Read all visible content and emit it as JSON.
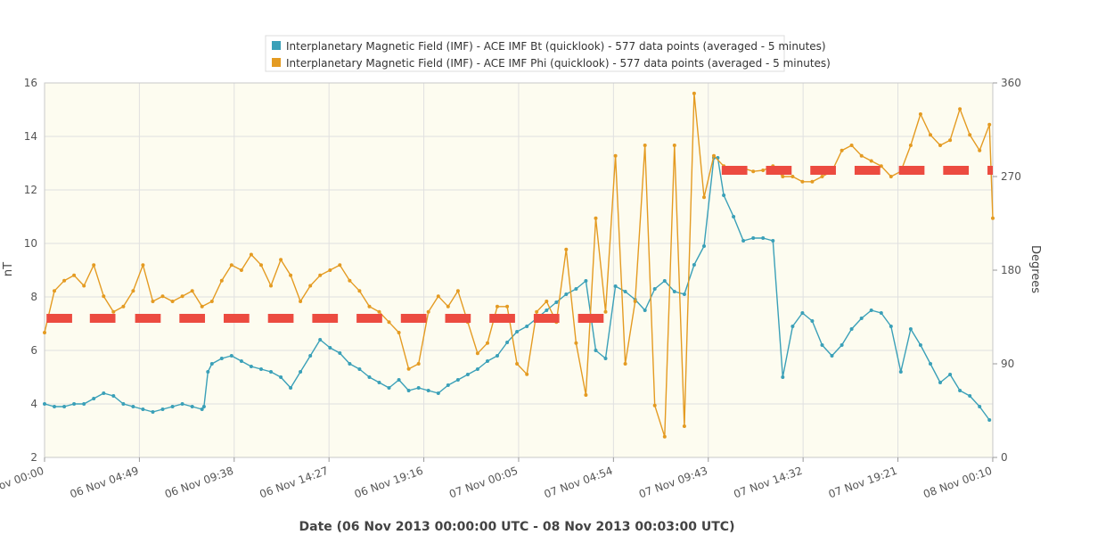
{
  "chart_data": {
    "type": "line",
    "xlabel": "Date (06 Nov 2013 00:00:00 UTC - 08 Nov 2013 00:03:00 UTC)",
    "ylabel_left": "nT",
    "ylabel_right": "Degrees",
    "ylim_left": [
      2,
      16
    ],
    "ylim_right": [
      0,
      360
    ],
    "yticks_left": [
      "2",
      "4",
      "6",
      "8",
      "10",
      "12",
      "14",
      "16"
    ],
    "yticks_right": [
      "0",
      "90",
      "180",
      "270",
      "360"
    ],
    "xlim_hours": [
      0,
      48.17
    ],
    "xticks": [
      "06 Nov 00:00",
      "06 Nov 04:49",
      "06 Nov 09:38",
      "06 Nov 14:27",
      "06 Nov 19:16",
      "07 Nov 00:05",
      "07 Nov 04:54",
      "07 Nov 09:43",
      "07 Nov 14:32",
      "07 Nov 19:21",
      "08 Nov 00:10"
    ],
    "xtick_hours": [
      0,
      4.817,
      9.633,
      14.45,
      19.267,
      24.083,
      28.9,
      33.717,
      38.533,
      43.35,
      48.167
    ],
    "grid": true,
    "legend_position": "top-center",
    "background_color": "#fdfcf0",
    "series": [
      {
        "name": "Interplanetary Magnetic Field (IMF) - ACE IMF Bt (quicklook) - 577 data points (averaged - 5 minutes)",
        "axis": "left",
        "color": "#3aa0b8",
        "hours": [
          0,
          0.5,
          1,
          1.5,
          2,
          2.5,
          3,
          3.5,
          4,
          4.5,
          5,
          5.5,
          6,
          6.5,
          7,
          7.5,
          8,
          8.1,
          8.3,
          8.5,
          9,
          9.5,
          10,
          10.5,
          11,
          11.5,
          12,
          12.5,
          13,
          13.5,
          14,
          14.5,
          15,
          15.5,
          16,
          16.5,
          17,
          17.5,
          18,
          18.5,
          19,
          19.5,
          20,
          20.5,
          21,
          21.5,
          22,
          22.5,
          23,
          23.5,
          24,
          24.5,
          25,
          25.5,
          26,
          26.5,
          27,
          27.5,
          28,
          28.5,
          29,
          29.5,
          30,
          30.5,
          31,
          31.5,
          32,
          32.5,
          33,
          33.5,
          34,
          34.2,
          34.5,
          35,
          35.5,
          36,
          36.5,
          37,
          37.5,
          38,
          38.5,
          39,
          39.5,
          40,
          40.5,
          41,
          41.5,
          42,
          42.5,
          43,
          43.5,
          44,
          44.5,
          45,
          45.5,
          46,
          46.5,
          47,
          47.5,
          48
        ],
        "values": [
          4.0,
          3.9,
          3.9,
          4.0,
          4.0,
          4.2,
          4.4,
          4.3,
          4.0,
          3.9,
          3.8,
          3.7,
          3.8,
          3.9,
          4.0,
          3.9,
          3.8,
          3.9,
          5.2,
          5.5,
          5.7,
          5.8,
          5.6,
          5.4,
          5.3,
          5.2,
          5.0,
          4.6,
          5.2,
          5.8,
          6.4,
          6.1,
          5.9,
          5.5,
          5.3,
          5.0,
          4.8,
          4.6,
          4.9,
          4.5,
          4.6,
          4.5,
          4.4,
          4.7,
          4.9,
          5.1,
          5.3,
          5.6,
          5.8,
          6.3,
          6.7,
          6.9,
          7.2,
          7.5,
          7.8,
          8.1,
          8.3,
          8.6,
          6.0,
          5.7,
          8.4,
          8.2,
          7.9,
          7.5,
          8.3,
          8.6,
          8.2,
          8.1,
          9.2,
          9.9,
          13.2,
          13.2,
          11.8,
          11.0,
          10.1,
          10.2,
          10.2,
          10.1,
          5.0,
          6.9,
          7.4,
          7.1,
          6.2,
          5.8,
          6.2,
          6.8,
          7.2,
          7.5,
          7.4,
          6.9,
          5.2,
          6.8,
          6.2,
          5.5,
          4.8,
          5.1,
          4.5,
          4.3,
          3.9,
          3.4
        ],
        "labels": [],
        "notes": []
      },
      {
        "name": "Interplanetary Magnetic Field (IMF) - ACE IMF Phi (quicklook) - 577 data points (averaged - 5 minutes)",
        "axis": "right",
        "color": "#e49b22",
        "hours": [
          0,
          0.5,
          1,
          1.5,
          2,
          2.5,
          3,
          3.5,
          4,
          4.5,
          5,
          5.5,
          6,
          6.5,
          7,
          7.5,
          8,
          8.5,
          9,
          9.5,
          10,
          10.5,
          11,
          11.5,
          12,
          12.5,
          13,
          13.5,
          14,
          14.5,
          15,
          15.5,
          16,
          16.5,
          17,
          17.5,
          18,
          18.5,
          19,
          19.5,
          20,
          20.5,
          21,
          21.5,
          22,
          22.5,
          23,
          23.5,
          24,
          24.5,
          25,
          25.5,
          26,
          26.5,
          27,
          27.5,
          28,
          28.5,
          29,
          29.5,
          30,
          30.5,
          31,
          31.5,
          32,
          32.5,
          33,
          33.5,
          34,
          34.5,
          35,
          35.5,
          36,
          36.5,
          37,
          37.5,
          38,
          38.5,
          39,
          39.5,
          40,
          40.5,
          41,
          41.5,
          42,
          42.5,
          43,
          43.5,
          44,
          44.5,
          45,
          45.5,
          46,
          46.5,
          47,
          47.5,
          48,
          48.17
        ],
        "values": [
          120,
          160,
          170,
          175,
          165,
          185,
          155,
          140,
          145,
          160,
          185,
          150,
          155,
          150,
          155,
          160,
          145,
          150,
          170,
          185,
          180,
          195,
          185,
          165,
          190,
          175,
          150,
          165,
          175,
          180,
          185,
          170,
          160,
          145,
          140,
          130,
          120,
          85,
          90,
          140,
          155,
          145,
          160,
          130,
          100,
          110,
          145,
          145,
          90,
          80,
          140,
          150,
          130,
          200,
          110,
          60,
          230,
          140,
          290,
          90,
          150,
          300,
          50,
          20,
          300,
          30,
          350,
          250,
          290,
          280,
          275,
          278,
          275,
          276,
          280,
          270,
          270,
          265,
          265,
          270,
          275,
          295,
          300,
          290,
          285,
          280,
          270,
          275,
          300,
          330,
          310,
          300,
          305,
          335,
          310,
          295,
          320,
          230
        ],
        "labels": [],
        "notes": []
      }
    ],
    "markers": {
      "color": "#ec4b40",
      "bt_dashes": {
        "value": 7.2,
        "start_hours": [
          0.1,
          2.3,
          4.6,
          6.85,
          9.1,
          11.35,
          13.6,
          15.85,
          18.1,
          20.35,
          22.6,
          24.85,
          27.1
        ],
        "length_hours": 1.3
      },
      "phi_dashes": {
        "value": 276,
        "start_hours": [
          34.4,
          36.65,
          38.9,
          41.15,
          43.4,
          45.65,
          47.9
        ],
        "length_hours": 1.3
      }
    }
  }
}
